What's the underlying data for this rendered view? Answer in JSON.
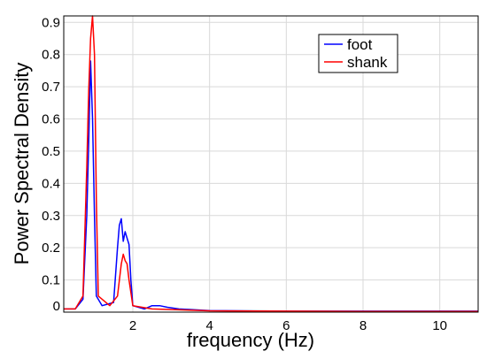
{
  "chart_data": {
    "type": "line",
    "xlabel": "frequency (Hz)",
    "ylabel": "Power Spectral Density",
    "xlim": [
      0.2,
      11
    ],
    "ylim": [
      0,
      0.92
    ],
    "grid": true,
    "x_ticks": [
      2,
      4,
      6,
      8,
      10
    ],
    "x_tick_labels": [
      "2",
      "4",
      "6",
      "8",
      "10"
    ],
    "y_ticks": [
      0,
      0.1,
      0.2,
      0.3,
      0.4,
      0.5,
      0.6,
      0.7,
      0.8,
      0.9
    ],
    "y_tick_labels": [
      "0",
      "0.1",
      "0.2",
      "0.3",
      "0.4",
      "0.5",
      "0.6",
      "0.7",
      "0.8",
      "0.9"
    ],
    "legend": {
      "position": "top-right"
    },
    "series": [
      {
        "name": "foot",
        "color": "#0000ff",
        "points": [
          [
            0.2,
            0.01
          ],
          [
            0.5,
            0.01
          ],
          [
            0.7,
            0.04
          ],
          [
            0.8,
            0.3
          ],
          [
            0.85,
            0.53
          ],
          [
            0.9,
            0.78
          ],
          [
            0.95,
            0.6
          ],
          [
            1.0,
            0.3
          ],
          [
            1.05,
            0.05
          ],
          [
            1.2,
            0.02
          ],
          [
            1.5,
            0.03
          ],
          [
            1.6,
            0.2
          ],
          [
            1.65,
            0.27
          ],
          [
            1.7,
            0.29
          ],
          [
            1.75,
            0.22
          ],
          [
            1.8,
            0.25
          ],
          [
            1.85,
            0.23
          ],
          [
            1.9,
            0.21
          ],
          [
            1.95,
            0.1
          ],
          [
            2.0,
            0.02
          ],
          [
            2.3,
            0.01
          ],
          [
            2.5,
            0.02
          ],
          [
            2.7,
            0.02
          ],
          [
            2.9,
            0.015
          ],
          [
            3.2,
            0.01
          ],
          [
            4.0,
            0.005
          ],
          [
            6,
            0.003
          ],
          [
            8,
            0.003
          ],
          [
            11,
            0.003
          ]
        ]
      },
      {
        "name": "shank",
        "color": "#ff0000",
        "points": [
          [
            0.2,
            0.01
          ],
          [
            0.5,
            0.01
          ],
          [
            0.7,
            0.05
          ],
          [
            0.8,
            0.45
          ],
          [
            0.85,
            0.69
          ],
          [
            0.9,
            0.85
          ],
          [
            0.95,
            0.92
          ],
          [
            1.0,
            0.8
          ],
          [
            1.05,
            0.35
          ],
          [
            1.1,
            0.05
          ],
          [
            1.4,
            0.02
          ],
          [
            1.6,
            0.05
          ],
          [
            1.7,
            0.15
          ],
          [
            1.75,
            0.18
          ],
          [
            1.8,
            0.16
          ],
          [
            1.85,
            0.15
          ],
          [
            1.9,
            0.1
          ],
          [
            2.0,
            0.02
          ],
          [
            2.5,
            0.01
          ],
          [
            4,
            0.004
          ],
          [
            6,
            0.003
          ],
          [
            8,
            0.002
          ],
          [
            11,
            0.002
          ]
        ]
      }
    ]
  }
}
